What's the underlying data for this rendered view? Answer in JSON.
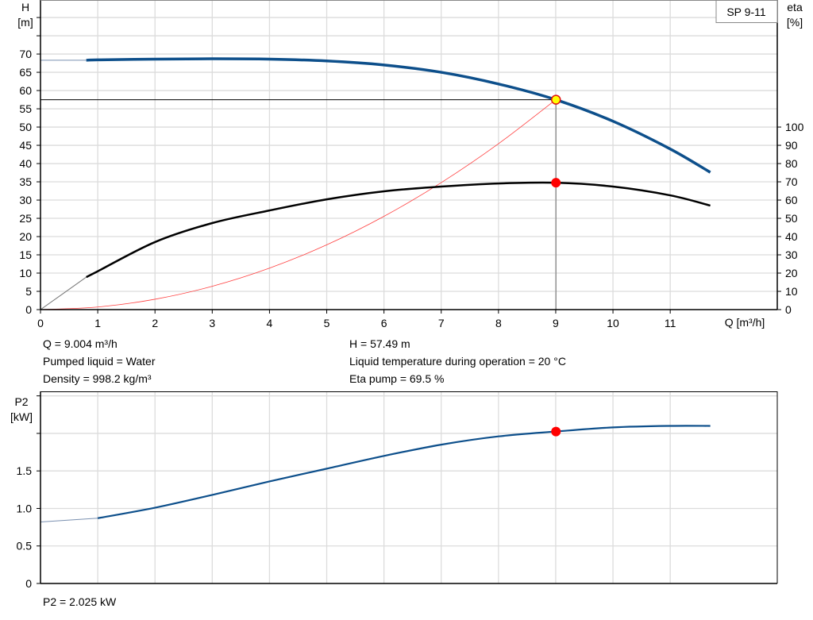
{
  "chart_data": [
    {
      "type": "line",
      "title": "SP 9-11",
      "xlabel": "Q [m³/h]",
      "xlim": [
        0,
        12.87
      ],
      "x_ticks": [
        0,
        1,
        2,
        3,
        4,
        5,
        6,
        7,
        8,
        9,
        10,
        11
      ],
      "ylabel_left": {
        "name": "H",
        "unit": "[m]"
      },
      "ylim_left": [
        0,
        84.8
      ],
      "y_ticks_left": [
        0,
        5,
        10,
        15,
        20,
        25,
        30,
        35,
        40,
        45,
        50,
        55,
        60,
        65,
        70
      ],
      "ylabel_right": {
        "name": "eta",
        "unit": "[%]"
      },
      "ylim_right": [
        0,
        169.6
      ],
      "y_ticks_right": [
        0,
        10,
        20,
        30,
        40,
        50,
        60,
        70,
        80,
        90,
        100
      ],
      "grid": true,
      "series": [
        {
          "key": "H",
          "axis": "left",
          "color": "#0d4f8b",
          "x": [
            0,
            0.8,
            1,
            2,
            3,
            4,
            5,
            6,
            7,
            8,
            9,
            10,
            11,
            11.7
          ],
          "y": [
            68.3,
            68.3,
            68.4,
            68.6,
            68.7,
            68.6,
            68.1,
            67.0,
            65.0,
            61.8,
            57.5,
            51.6,
            44.0,
            37.6
          ],
          "thin_below_x": 0.8
        },
        {
          "key": "eta",
          "axis": "right",
          "color": "#000000",
          "x": [
            0,
            0.8,
            1,
            2,
            3,
            4,
            5,
            6,
            7,
            8,
            9,
            10,
            11,
            11.7
          ],
          "y": [
            0,
            17.8,
            21,
            37,
            47.4,
            54.3,
            60.4,
            64.8,
            67.4,
            69.1,
            69.5,
            67.4,
            62.6,
            57
          ],
          "thin_below_x": 0.8
        },
        {
          "key": "system-curve",
          "axis": "left",
          "color": "#ff4040",
          "x": [
            0,
            1,
            2,
            3,
            4,
            5,
            6,
            7,
            8,
            9
          ],
          "y": [
            0,
            0.71,
            2.84,
            6.39,
            11.36,
            17.74,
            25.55,
            34.78,
            45.43,
            57.49
          ]
        }
      ],
      "operating_point": {
        "Q": 9.004,
        "H": 57.49,
        "eta": 69.5
      }
    },
    {
      "type": "line",
      "ylabel": {
        "name": "P2",
        "unit": "[kW]"
      },
      "xlim": [
        0,
        12.87
      ],
      "ylim": [
        0,
        2.56
      ],
      "y_ticks": [
        0,
        0.5,
        1.0,
        1.5,
        2.0,
        2.5
      ],
      "y_tick_labels": [
        "0",
        "0.5",
        "1.0",
        "1.5",
        "",
        ""
      ],
      "grid": true,
      "series": [
        {
          "key": "P2",
          "color": "#0d4f8b",
          "x": [
            0,
            1,
            2,
            3,
            4,
            5,
            6,
            7,
            8,
            9,
            10,
            11,
            11.7
          ],
          "y": [
            0.82,
            0.87,
            1.01,
            1.18,
            1.36,
            1.53,
            1.7,
            1.85,
            1.96,
            2.025,
            2.08,
            2.1,
            2.1
          ],
          "thin_below_x": 1
        }
      ],
      "operating_point": {
        "Q": 9.004,
        "P2": 2.025
      }
    }
  ],
  "info": {
    "q": "Q = 9.004 m³/h",
    "liquid": "Pumped liquid = Water",
    "density": "Density = 998.2 kg/m³",
    "h": "H = 57.49 m",
    "temp": "Liquid temperature during operation = 20 °C",
    "eta": "Eta pump = 69.5 %",
    "p2": "P2 = 2.025 kW"
  }
}
